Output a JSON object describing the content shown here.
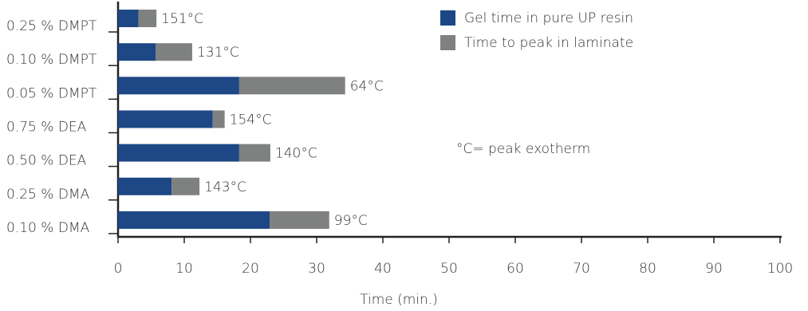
{
  "chart_data": {
    "type": "stacked-barh",
    "categories": [
      "0.25 % DMPT",
      "0.10 % DMPT",
      "0.05 % DMPT",
      "0.75 % DEA",
      "0.50 % DEA",
      "0.25 % DMA",
      "0.10 % DMA"
    ],
    "series": [
      {
        "name": "Gel time in pure UP resin",
        "color": "#1d4785",
        "values": [
          3.1,
          5.7,
          18.3,
          14.3,
          18.3,
          8.1,
          22.9
        ]
      },
      {
        "name": "Time to peak in laminate",
        "color": "#7f8080",
        "values": [
          2.7,
          5.5,
          16,
          1.8,
          4.7,
          4.2,
          9
        ]
      }
    ],
    "peak_labels": [
      "151°C",
      "131°C",
      "64°C",
      "154°C",
      "140°C",
      "143°C",
      "99°C"
    ],
    "note": "°C= peak exotherm",
    "xlabel": "Time (min.)",
    "xlim": [
      0,
      100
    ],
    "xticks": [
      0,
      10,
      20,
      30,
      40,
      50,
      60,
      70,
      80,
      90,
      100
    ]
  }
}
